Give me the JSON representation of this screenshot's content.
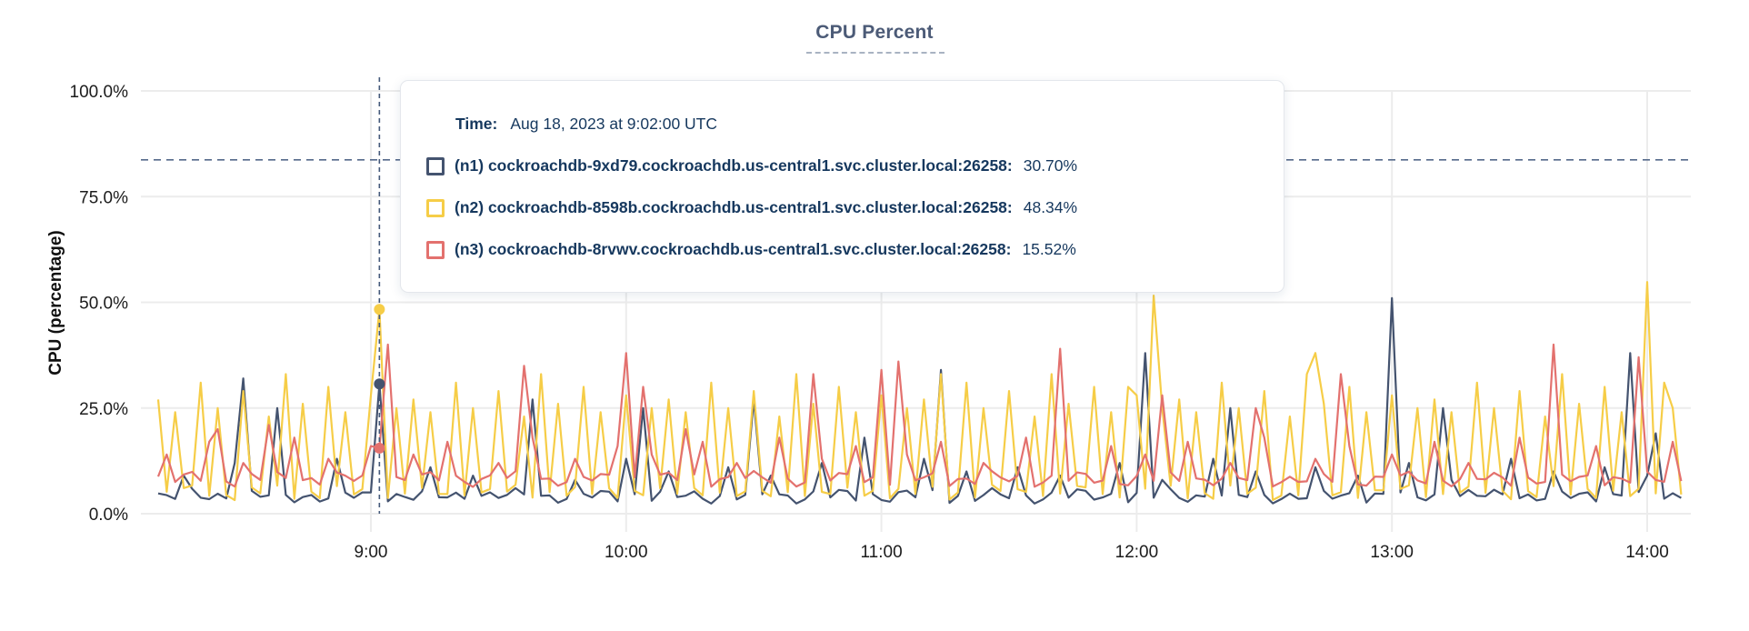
{
  "chart_data": {
    "type": "line",
    "title": "CPU Percent",
    "ylabel": "CPU (percentage)",
    "ylim": [
      0,
      100
    ],
    "grid": true,
    "y_ticks": [
      {
        "label": "0.0%",
        "value": 0
      },
      {
        "label": "25.0%",
        "value": 25
      },
      {
        "label": "50.0%",
        "value": 50
      },
      {
        "label": "75.0%",
        "value": 75
      },
      {
        "label": "100.0%",
        "value": 100
      }
    ],
    "x_ticks": [
      {
        "label": "9:00",
        "minute": 540
      },
      {
        "label": "10:00",
        "minute": 600
      },
      {
        "label": "11:00",
        "minute": 660
      },
      {
        "label": "12:00",
        "minute": 720
      },
      {
        "label": "13:00",
        "minute": 780
      },
      {
        "label": "14:00",
        "minute": 840
      }
    ],
    "x_range_minutes": [
      490,
      848
    ],
    "sample_step_minutes": 2,
    "threshold_percent": 83.7,
    "hover": {
      "minute": 542,
      "time_text": "Aug 18, 2023 at 9:02:00 UTC",
      "values": {
        "n1": 30.7,
        "n2": 48.34,
        "n3": 15.52
      }
    },
    "series": [
      {
        "id": "n1",
        "name": "(n1) cockroachdb-9xd79.cockroachdb.us-central1.svc.cluster.local:26258:",
        "color": "#44536f",
        "baseline": 4.2,
        "minor_spikes": {
          "start": 496,
          "gaps": [
            12,
            10,
            14,
            10
          ],
          "heights": [
            9,
            12,
            8,
            13,
            10,
            11
          ]
        },
        "major_spikes": [
          [
            510,
            32
          ],
          [
            518,
            25
          ],
          [
            542,
            30.7
          ],
          [
            578,
            27
          ],
          [
            604,
            25
          ],
          [
            630,
            27
          ],
          [
            656,
            18
          ],
          [
            674,
            34
          ],
          [
            722,
            38
          ],
          [
            742,
            25
          ],
          [
            780,
            51
          ],
          [
            792,
            25
          ],
          [
            836,
            38
          ],
          [
            842,
            19
          ]
        ]
      },
      {
        "id": "n2",
        "name": "(n2) cockroachdb-8598b.cockroachdb.us-central1.svc.cluster.local:26258:",
        "color": "#f6cd47",
        "baseline": 5.0,
        "minor_spikes": {
          "start": 490,
          "gaps": [
            4,
            6,
            4,
            6,
            6,
            4
          ],
          "heights": [
            27,
            24,
            31,
            25,
            29,
            23,
            33,
            26,
            30,
            24,
            28,
            25
          ]
        },
        "major_spikes": [
          [
            542,
            48.34
          ],
          [
            674,
            33
          ],
          [
            718,
            30
          ],
          [
            724,
            51.6
          ],
          [
            762,
            38
          ],
          [
            840,
            54.8
          ],
          [
            844,
            31
          ]
        ]
      },
      {
        "id": "n3",
        "name": "(n3) cockroachdb-8rvwv.cockroachdb.us-central1.svc.cluster.local:26258:",
        "color": "#e3716e",
        "baseline": 8.2,
        "minor_spikes": {
          "start": 492,
          "gaps": [
            10,
            8,
            12,
            8,
            10
          ],
          "heights": [
            14,
            17,
            12,
            18,
            13,
            16
          ]
        },
        "major_spikes": [
          [
            504,
            20
          ],
          [
            516,
            21
          ],
          [
            542,
            15.5
          ],
          [
            544,
            40
          ],
          [
            576,
            35
          ],
          [
            600,
            38
          ],
          [
            604,
            30
          ],
          [
            614,
            20
          ],
          [
            644,
            33
          ],
          [
            660,
            34
          ],
          [
            664,
            36
          ],
          [
            702,
            39
          ],
          [
            726,
            28
          ],
          [
            748,
            25
          ],
          [
            768,
            33
          ],
          [
            818,
            40
          ],
          [
            838,
            37
          ]
        ]
      }
    ]
  },
  "tooltip": {
    "time_label": "Time:",
    "time_value": "Aug 18, 2023 at 9:02:00 UTC",
    "rows": [
      {
        "node": "n1",
        "label": "(n1) cockroachdb-9xd79.cockroachdb.us-central1.svc.cluster.local:26258:",
        "value": "30.70%",
        "color": "#44536f"
      },
      {
        "node": "n2",
        "label": "(n2) cockroachdb-8598b.cockroachdb.us-central1.svc.cluster.local:26258:",
        "value": "48.34%",
        "color": "#f6cd47"
      },
      {
        "node": "n3",
        "label": "(n3) cockroachdb-8rvwv.cockroachdb.us-central1.svc.cluster.local:26258:",
        "value": "15.52%",
        "color": "#e3716e"
      }
    ]
  },
  "colors": {
    "grid": "#ececec",
    "threshold": "#55698a",
    "hover_line": "#44597a",
    "axis_text": "#1c1c1c",
    "title": "#4c5b77",
    "tooltip_text": "#16385e"
  }
}
